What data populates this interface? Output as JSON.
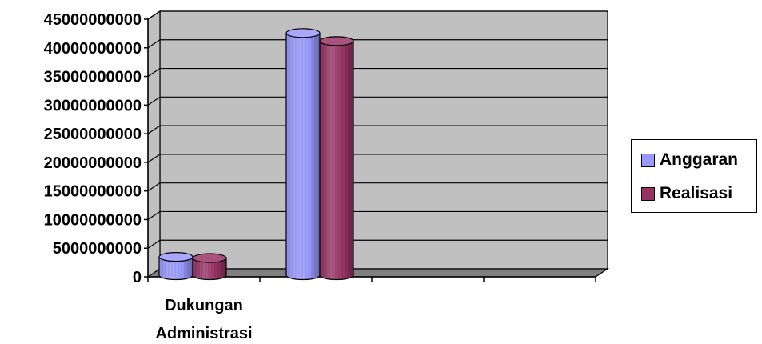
{
  "chart_data": {
    "type": "bar",
    "categories": [
      "Dukungan Administrasi",
      "",
      "",
      ""
    ],
    "category_lines": [
      [
        "Dukungan",
        "Administrasi"
      ],
      [],
      [],
      []
    ],
    "series": [
      {
        "name": "Anggaran",
        "color": "#9999ff",
        "values": [
          3200000000,
          42300000000,
          null,
          null
        ]
      },
      {
        "name": "Realisasi",
        "color": "#993366",
        "values": [
          3000000000,
          40900000000,
          null,
          null
        ]
      }
    ],
    "y_ticks": [
      "0",
      "5000000000",
      "10000000000",
      "15000000000",
      "20000000000",
      "25000000000",
      "30000000000",
      "35000000000",
      "40000000000",
      "45000000000"
    ],
    "ylim": [
      0,
      45000000000
    ],
    "grid": true,
    "legend_position": "right",
    "title": "",
    "xlabel": "",
    "ylabel": "",
    "wall_color": "#c0c0c0",
    "floor_color": "#808080"
  }
}
